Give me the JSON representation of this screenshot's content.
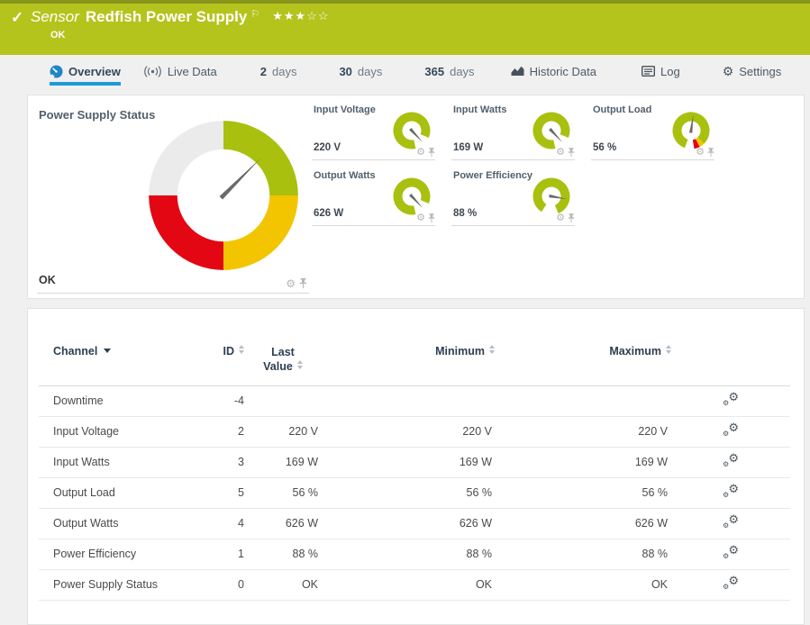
{
  "icons": {
    "check": "✓",
    "flag": "⚐",
    "gear": "⚙"
  },
  "header": {
    "kind": "Sensor",
    "name": "Redfish Power Supply",
    "status": "OK",
    "rating_filled": 3,
    "rating_total": 5
  },
  "tabs": {
    "overview": "Overview",
    "live_data": "Live Data",
    "d2_num": "2",
    "d2_unit": "days",
    "d30_num": "30",
    "d30_unit": "days",
    "d365_num": "365",
    "d365_unit": "days",
    "historic": "Historic Data",
    "log": "Log",
    "settings": "Settings"
  },
  "gauge_panel": {
    "main": {
      "title": "Power Supply Status",
      "status": "OK",
      "needle_deg": 45
    },
    "small": [
      {
        "label": "Input Voltage",
        "value": "220 V",
        "needle_deg": 137
      },
      {
        "label": "Input Watts",
        "value": "169 W",
        "needle_deg": 137
      },
      {
        "label": "Output Load",
        "value": "56 %",
        "needle_deg": 8
      },
      {
        "label": "Output Watts",
        "value": "626 W",
        "needle_deg": 137
      },
      {
        "label": "Power Efficiency",
        "value": "88 %",
        "needle_deg": 100
      }
    ]
  },
  "table": {
    "columns": [
      "Channel",
      "ID",
      "Last Value",
      "Minimum",
      "Maximum"
    ],
    "rows": [
      {
        "channel": "Downtime",
        "id": "-4",
        "last": "",
        "min": "",
        "max": ""
      },
      {
        "channel": "Input Voltage",
        "id": "2",
        "last": "220 V",
        "min": "220 V",
        "max": "220 V"
      },
      {
        "channel": "Input Watts",
        "id": "3",
        "last": "169 W",
        "min": "169 W",
        "max": "169 W"
      },
      {
        "channel": "Output Load",
        "id": "5",
        "last": "56 %",
        "min": "56 %",
        "max": "56 %"
      },
      {
        "channel": "Output Watts",
        "id": "4",
        "last": "626 W",
        "min": "626 W",
        "max": "626 W"
      },
      {
        "channel": "Power Efficiency",
        "id": "1",
        "last": "88 %",
        "min": "88 %",
        "max": "88 %"
      },
      {
        "channel": "Power Supply Status",
        "id": "0",
        "last": "OK",
        "min": "OK",
        "max": "OK"
      }
    ]
  },
  "chart_data": [
    {
      "type": "gauge",
      "title": "Power Supply Status",
      "value": "OK",
      "segments": [
        "green",
        "yellow",
        "red",
        "gray"
      ]
    },
    {
      "type": "gauge",
      "title": "Input Voltage",
      "value": 220,
      "unit": "V"
    },
    {
      "type": "gauge",
      "title": "Input Watts",
      "value": 169,
      "unit": "W"
    },
    {
      "type": "gauge",
      "title": "Output Load",
      "value": 56,
      "unit": "%"
    },
    {
      "type": "gauge",
      "title": "Output Watts",
      "value": 626,
      "unit": "W"
    },
    {
      "type": "gauge",
      "title": "Power Efficiency",
      "value": 88,
      "unit": "%"
    }
  ],
  "colors": {
    "header_green": "#b5c31d",
    "gauge_green": "#a9c00e",
    "gauge_yellow": "#f2c500",
    "gauge_red": "#e30613",
    "gauge_gray": "#ebebeb",
    "active_tab_blue": "#1e9ad6"
  }
}
